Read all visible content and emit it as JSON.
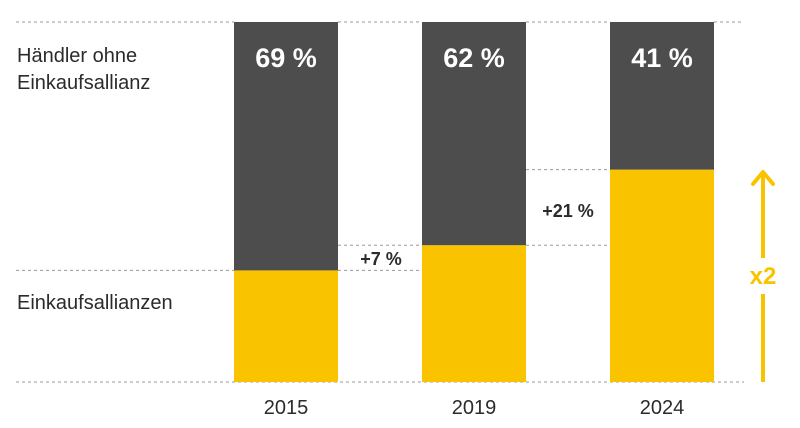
{
  "chart_data": {
    "type": "bar",
    "stacked": true,
    "categories": [
      "2015",
      "2019",
      "2024"
    ],
    "series": [
      {
        "name": "Einkaufsallianzen",
        "values": [
          31,
          38,
          59
        ],
        "color": "#f9c300"
      },
      {
        "name": "Händler ohne Einkaufsallianz",
        "values": [
          69,
          62,
          41
        ],
        "color": "#4d4d4d"
      }
    ],
    "top_labels": [
      "69 %",
      "62 %",
      "41 %"
    ],
    "ylim": [
      0,
      100
    ],
    "legend": {
      "top": [
        "Händler ohne",
        "Einkaufsallianz"
      ],
      "bottom": [
        "Einkaufsallianzen"
      ]
    },
    "annotations": {
      "deltas": [
        "+7 %",
        "+21 %"
      ],
      "multiplier": "x2",
      "multiplier_color": "#f9c300"
    },
    "grid": "dashed guide lines"
  }
}
